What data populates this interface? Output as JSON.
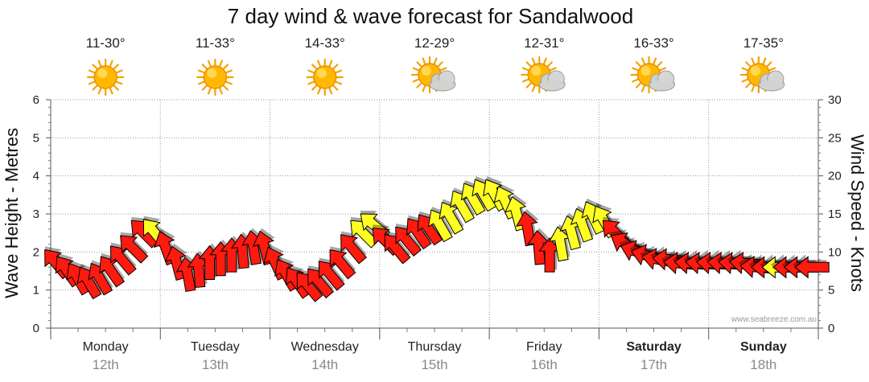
{
  "chart_data": {
    "type": "line",
    "title": "7 day wind & wave forecast for Sandalwood",
    "ylabel_left": "Wave Height - Metres",
    "ylabel_right": "Wind Speed - Knots",
    "ylim_left": [
      0,
      6
    ],
    "ylim_right": [
      0,
      30
    ],
    "yticks_left": [
      "0",
      "1",
      "2",
      "3",
      "4",
      "5",
      "6"
    ],
    "yticks_right": [
      "0",
      "5",
      "10",
      "15",
      "20",
      "25",
      "30"
    ],
    "credit": "www.seabreeze.com.au",
    "days": [
      {
        "day": "Monday",
        "date": "12th",
        "temp": "11-30°",
        "icon": "sun-icon",
        "bold": false
      },
      {
        "day": "Tuesday",
        "date": "13th",
        "temp": "11-33°",
        "icon": "sun-icon",
        "bold": false
      },
      {
        "day": "Wednesday",
        "date": "14th",
        "temp": "14-33°",
        "icon": "sun-icon",
        "bold": false
      },
      {
        "day": "Thursday",
        "date": "15th",
        "temp": "12-29°",
        "icon": "sun-cloud-icon",
        "bold": false
      },
      {
        "day": "Friday",
        "date": "16th",
        "temp": "12-31°",
        "icon": "sun-cloud-icon",
        "bold": false
      },
      {
        "day": "Saturday",
        "date": "17th",
        "temp": "16-33°",
        "icon": "sun-cloud-icon",
        "bold": true
      },
      {
        "day": "Sunday",
        "date": "18th",
        "temp": "17-35°",
        "icon": "sun-cloud-icon",
        "bold": true
      }
    ],
    "series": [
      {
        "name": "Wind Speed (knots) with direction arrows",
        "unit": "knots",
        "x_days": [
          0.05,
          0.15,
          0.25,
          0.35,
          0.45,
          0.55,
          0.65,
          0.75,
          0.85,
          0.95,
          1.05,
          1.15,
          1.25,
          1.35,
          1.45,
          1.55,
          1.65,
          1.75,
          1.85,
          1.95,
          2.05,
          2.15,
          2.25,
          2.35,
          2.45,
          2.55,
          2.65,
          2.75,
          2.85,
          2.95,
          3.05,
          3.15,
          3.25,
          3.35,
          3.45,
          3.55,
          3.65,
          3.75,
          3.85,
          3.95,
          4.05,
          4.15,
          4.25,
          4.35,
          4.45,
          4.55,
          4.65,
          4.75,
          4.85,
          4.95,
          5.05,
          5.15,
          5.25,
          5.35,
          5.45,
          5.55,
          5.65,
          5.75,
          5.85,
          5.95,
          6.05,
          6.15,
          6.25,
          6.35,
          6.45,
          6.55,
          6.65,
          6.75,
          6.85,
          6.95
        ],
        "values": [
          8.5,
          7.5,
          6.5,
          6,
          6.5,
          7.5,
          9,
          10.5,
          12.5,
          12.5,
          10.5,
          8.5,
          7,
          7.5,
          8.5,
          9,
          9.5,
          10,
          10.5,
          10.5,
          8.5,
          7,
          6,
          5.5,
          6,
          7,
          8.5,
          10.5,
          12.5,
          13.5,
          11.5,
          10.5,
          11.5,
          12.5,
          13,
          13.5,
          14.5,
          16,
          17,
          17.5,
          17.5,
          16.5,
          15,
          13,
          10.5,
          9.5,
          11,
          12.5,
          13.5,
          14.5,
          14,
          12.5,
          11,
          10,
          9.5,
          9,
          9,
          8.5,
          8.5,
          8.5,
          8.5,
          8.5,
          8.5,
          8.5,
          8,
          8,
          8,
          8,
          8,
          8
        ],
        "direction_deg": [
          140,
          145,
          150,
          150,
          150,
          145,
          140,
          135,
          135,
          140,
          160,
          165,
          170,
          175,
          180,
          180,
          180,
          175,
          170,
          165,
          155,
          150,
          145,
          140,
          140,
          140,
          140,
          140,
          135,
          130,
          135,
          140,
          140,
          145,
          145,
          150,
          150,
          150,
          150,
          150,
          150,
          155,
          165,
          170,
          175,
          180,
          170,
          165,
          160,
          155,
          150,
          135,
          120,
          110,
          105,
          100,
          95,
          95,
          95,
          95,
          95,
          95,
          95,
          95,
          95,
          90,
          90,
          90,
          90,
          90
        ],
        "colors": [
          "red",
          "red",
          "red",
          "red",
          "red",
          "red",
          "red",
          "red",
          "red",
          "yellow",
          "red",
          "red",
          "red",
          "red",
          "red",
          "red",
          "red",
          "red",
          "red",
          "red",
          "red",
          "red",
          "red",
          "red",
          "red",
          "red",
          "red",
          "red",
          "yellow",
          "yellow",
          "red",
          "red",
          "red",
          "red",
          "red",
          "yellow",
          "yellow",
          "yellow",
          "yellow",
          "yellow",
          "yellow",
          "yellow",
          "yellow",
          "red",
          "red",
          "red",
          "yellow",
          "yellow",
          "yellow",
          "yellow",
          "yellow",
          "red",
          "red",
          "red",
          "red",
          "red",
          "red",
          "red",
          "red",
          "red",
          "red",
          "red",
          "red",
          "red",
          "red",
          "red",
          "yellow",
          "red",
          "red",
          "red"
        ]
      }
    ],
    "arrow_colors": {
      "red": "#ff1a10",
      "yellow": "#ffff22"
    }
  }
}
